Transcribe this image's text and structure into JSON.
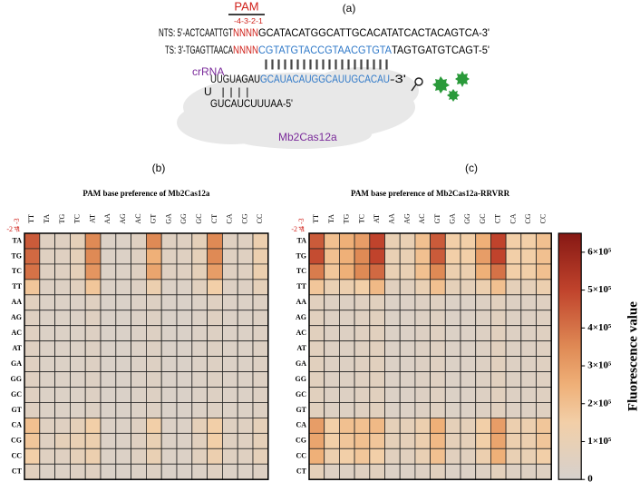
{
  "diagram": {
    "pam": "PAM",
    "panel_a": "(a)",
    "positions": "-4-3-2-1",
    "nts": {
      "left": "NTS: 5'-ACTCAATTGT",
      "pam": "NNNN",
      "right": "GCATACATGGCATTGCACATATCACTACAGTCA-3'"
    },
    "ts": {
      "left": "TS: 3'-TGAGTTAACA",
      "pam": "NNNN",
      "target": "CGTATGTACCGTAACGTGTA",
      "right": "TAGTGATGTCAGT-5'"
    },
    "pairing": "||||||||||||||||||||",
    "crrna_label": "crRNA",
    "crrna": {
      "handle": "UUGUAGAU",
      "spacer": "GCAUACAUGGCAUUGCACAU",
      "end": "-3'"
    },
    "loop": "U",
    "stem_pairs": "| | | |",
    "stem": "GUCAUCUUUAA-5'",
    "protein": "Mb2Cas12a",
    "panel_b": "(b)",
    "panel_c": "(c)"
  },
  "chart_data": [
    {
      "type": "heatmap",
      "title": "PAM base preference of Mb2Cas12a",
      "x_header": "-4 -3",
      "y_header": "-2 -1",
      "x": [
        "TT",
        "TA",
        "TG",
        "TC",
        "AT",
        "AA",
        "AG",
        "AC",
        "GT",
        "GA",
        "GG",
        "GC",
        "CT",
        "CA",
        "CG",
        "CC"
      ],
      "y": [
        "TA",
        "TG",
        "TC",
        "TT",
        "AA",
        "AG",
        "AC",
        "AT",
        "GA",
        "GG",
        "GC",
        "GT",
        "CA",
        "CG",
        "CC",
        "CT"
      ],
      "z": [
        [
          450000,
          50000,
          50000,
          80000,
          350000,
          30000,
          30000,
          50000,
          350000,
          50000,
          50000,
          80000,
          350000,
          50000,
          50000,
          120000
        ],
        [
          420000,
          50000,
          50000,
          80000,
          350000,
          30000,
          30000,
          50000,
          250000,
          50000,
          50000,
          80000,
          350000,
          50000,
          50000,
          120000
        ],
        [
          400000,
          50000,
          50000,
          80000,
          320000,
          30000,
          30000,
          50000,
          280000,
          50000,
          50000,
          80000,
          300000,
          50000,
          50000,
          120000
        ],
        [
          180000,
          40000,
          40000,
          60000,
          180000,
          30000,
          30000,
          40000,
          120000,
          30000,
          30000,
          60000,
          150000,
          40000,
          40000,
          80000
        ],
        [
          60000,
          30000,
          30000,
          30000,
          50000,
          20000,
          20000,
          30000,
          40000,
          20000,
          20000,
          30000,
          50000,
          30000,
          30000,
          40000
        ],
        [
          50000,
          30000,
          30000,
          30000,
          50000,
          20000,
          20000,
          30000,
          40000,
          20000,
          20000,
          30000,
          50000,
          30000,
          30000,
          40000
        ],
        [
          50000,
          30000,
          30000,
          30000,
          40000,
          20000,
          20000,
          30000,
          40000,
          20000,
          20000,
          30000,
          40000,
          30000,
          30000,
          40000
        ],
        [
          50000,
          30000,
          30000,
          30000,
          40000,
          20000,
          20000,
          30000,
          40000,
          20000,
          20000,
          30000,
          40000,
          30000,
          30000,
          40000
        ],
        [
          50000,
          30000,
          30000,
          30000,
          40000,
          20000,
          20000,
          30000,
          40000,
          20000,
          20000,
          30000,
          40000,
          30000,
          30000,
          40000
        ],
        [
          50000,
          30000,
          30000,
          30000,
          40000,
          20000,
          20000,
          30000,
          40000,
          20000,
          20000,
          30000,
          40000,
          30000,
          30000,
          40000
        ],
        [
          50000,
          30000,
          30000,
          30000,
          40000,
          20000,
          20000,
          30000,
          40000,
          20000,
          20000,
          30000,
          40000,
          30000,
          30000,
          40000
        ],
        [
          50000,
          30000,
          30000,
          30000,
          40000,
          20000,
          20000,
          30000,
          40000,
          20000,
          20000,
          30000,
          40000,
          30000,
          30000,
          40000
        ],
        [
          200000,
          50000,
          50000,
          80000,
          150000,
          30000,
          30000,
          50000,
          150000,
          30000,
          30000,
          80000,
          150000,
          50000,
          50000,
          80000
        ],
        [
          180000,
          50000,
          80000,
          100000,
          120000,
          30000,
          30000,
          50000,
          100000,
          30000,
          30000,
          60000,
          150000,
          50000,
          50000,
          80000
        ],
        [
          150000,
          50000,
          50000,
          80000,
          120000,
          30000,
          30000,
          50000,
          100000,
          30000,
          30000,
          60000,
          120000,
          50000,
          50000,
          80000
        ],
        [
          60000,
          30000,
          30000,
          40000,
          50000,
          20000,
          20000,
          30000,
          40000,
          20000,
          20000,
          30000,
          50000,
          30000,
          30000,
          40000
        ]
      ],
      "zlim": [
        0,
        650000
      ],
      "colorscale": [
        [
          0,
          "#d6d1cd"
        ],
        [
          150000,
          "#f2cfa8"
        ],
        [
          250000,
          "#efb078"
        ],
        [
          350000,
          "#df8a55"
        ],
        [
          500000,
          "#c0432c"
        ],
        [
          650000,
          "#861814"
        ]
      ]
    },
    {
      "type": "heatmap",
      "title": "PAM base preference of Mb2Cas12a-RRVRR",
      "x_header": "-4 -3",
      "y_header": "-2 -1",
      "x": [
        "TT",
        "TA",
        "TG",
        "TC",
        "AT",
        "AA",
        "AG",
        "AC",
        "GT",
        "GA",
        "GG",
        "GC",
        "CT",
        "CA",
        "CG",
        "CC"
      ],
      "y": [
        "TA",
        "TG",
        "TC",
        "TT",
        "AA",
        "AG",
        "AC",
        "AT",
        "GA",
        "GG",
        "GC",
        "GT",
        "CA",
        "CG",
        "CC",
        "CT"
      ],
      "z": [
        [
          450000,
          200000,
          250000,
          300000,
          500000,
          100000,
          100000,
          200000,
          450000,
          150000,
          150000,
          250000,
          500000,
          150000,
          150000,
          200000
        ],
        [
          480000,
          200000,
          250000,
          350000,
          500000,
          100000,
          100000,
          200000,
          450000,
          150000,
          150000,
          300000,
          500000,
          150000,
          150000,
          200000
        ],
        [
          380000,
          180000,
          250000,
          350000,
          420000,
          100000,
          100000,
          200000,
          350000,
          120000,
          120000,
          250000,
          400000,
          150000,
          150000,
          200000
        ],
        [
          180000,
          100000,
          120000,
          150000,
          220000,
          60000,
          60000,
          100000,
          200000,
          80000,
          80000,
          120000,
          200000,
          80000,
          80000,
          120000
        ],
        [
          60000,
          40000,
          40000,
          50000,
          60000,
          30000,
          30000,
          40000,
          50000,
          30000,
          30000,
          40000,
          60000,
          40000,
          40000,
          50000
        ],
        [
          60000,
          40000,
          40000,
          50000,
          60000,
          30000,
          30000,
          40000,
          50000,
          30000,
          30000,
          40000,
          60000,
          40000,
          40000,
          50000
        ],
        [
          60000,
          40000,
          40000,
          50000,
          60000,
          30000,
          30000,
          40000,
          50000,
          30000,
          30000,
          40000,
          60000,
          40000,
          40000,
          50000
        ],
        [
          60000,
          40000,
          40000,
          50000,
          60000,
          30000,
          30000,
          40000,
          50000,
          30000,
          30000,
          40000,
          60000,
          40000,
          40000,
          50000
        ],
        [
          60000,
          40000,
          40000,
          50000,
          60000,
          30000,
          30000,
          40000,
          50000,
          30000,
          30000,
          40000,
          60000,
          40000,
          40000,
          50000
        ],
        [
          60000,
          40000,
          40000,
          50000,
          60000,
          30000,
          30000,
          40000,
          50000,
          30000,
          30000,
          40000,
          60000,
          40000,
          40000,
          50000
        ],
        [
          60000,
          40000,
          40000,
          50000,
          60000,
          30000,
          30000,
          40000,
          50000,
          30000,
          30000,
          40000,
          60000,
          40000,
          40000,
          50000
        ],
        [
          60000,
          40000,
          40000,
          50000,
          60000,
          30000,
          30000,
          40000,
          50000,
          30000,
          30000,
          40000,
          60000,
          40000,
          40000,
          50000
        ],
        [
          300000,
          150000,
          200000,
          200000,
          220000,
          80000,
          80000,
          120000,
          250000,
          80000,
          80000,
          150000,
          300000,
          120000,
          120000,
          180000
        ],
        [
          280000,
          150000,
          180000,
          200000,
          180000,
          80000,
          80000,
          120000,
          220000,
          80000,
          80000,
          150000,
          280000,
          120000,
          120000,
          180000
        ],
        [
          250000,
          120000,
          150000,
          180000,
          150000,
          60000,
          60000,
          100000,
          200000,
          60000,
          60000,
          120000,
          250000,
          100000,
          100000,
          150000
        ],
        [
          80000,
          40000,
          40000,
          50000,
          60000,
          30000,
          30000,
          40000,
          60000,
          30000,
          30000,
          40000,
          70000,
          40000,
          40000,
          50000
        ]
      ],
      "zlim": [
        0,
        650000
      ],
      "colorscale": [
        [
          0,
          "#d6d1cd"
        ],
        [
          150000,
          "#f2cfa8"
        ],
        [
          250000,
          "#efb078"
        ],
        [
          350000,
          "#df8a55"
        ],
        [
          500000,
          "#c0432c"
        ],
        [
          650000,
          "#861814"
        ]
      ],
      "colorbar": {
        "label": "Fluorescence value",
        "ticks": [
          0,
          {
            "value": 100000,
            "label": "1×10⁵"
          },
          {
            "value": 200000,
            "label": "2×10⁵"
          },
          {
            "value": 300000,
            "label": "3×10⁵"
          },
          {
            "value": 400000,
            "label": "4×10⁵"
          },
          {
            "value": 500000,
            "label": "5×10⁵"
          },
          {
            "value": 600000,
            "label": "6×10⁵"
          }
        ]
      }
    }
  ]
}
